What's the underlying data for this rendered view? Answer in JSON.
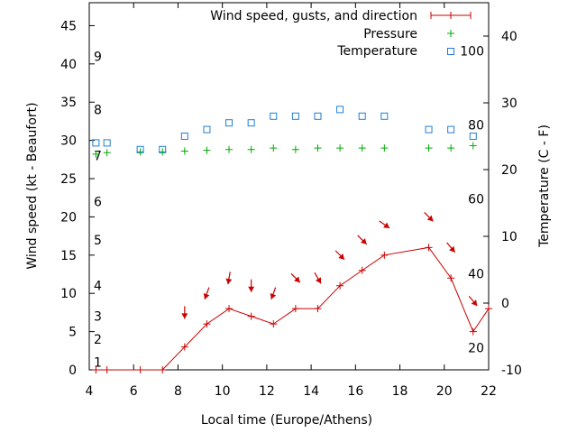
{
  "chart_data": {
    "type": "line",
    "xlabel": "Local time (Europe/Athens)",
    "ylabel_left": "Wind speed (kt - Beaufort)",
    "ylabel_right": "Temperature (C - F)",
    "xlim": [
      4,
      22
    ],
    "xticks": [
      4,
      6,
      8,
      10,
      12,
      14,
      16,
      18,
      20,
      22
    ],
    "ylim_left": [
      0,
      48
    ],
    "yticks_left": [
      0,
      5,
      10,
      15,
      20,
      25,
      30,
      35,
      40,
      45
    ],
    "ylim_right": [
      -10,
      45
    ],
    "yticks_right": [
      -10,
      0,
      10,
      20,
      30,
      40
    ],
    "beaufort_labels": [
      {
        "label": "1",
        "at": 1
      },
      {
        "label": "2",
        "at": 4
      },
      {
        "label": "3",
        "at": 7
      },
      {
        "label": "4",
        "at": 11
      },
      {
        "label": "5",
        "at": 17
      },
      {
        "label": "6",
        "at": 22
      },
      {
        "label": "7",
        "at": 28
      },
      {
        "label": "8",
        "at": 34
      },
      {
        "label": "9",
        "at": 41
      }
    ],
    "fahrenheit_labels": [
      {
        "label": "20",
        "at": -6.7
      },
      {
        "label": "40",
        "at": 4.4
      },
      {
        "label": "60",
        "at": 15.6
      },
      {
        "label": "80",
        "at": 26.7
      },
      {
        "label": "100",
        "at": 37.8
      }
    ],
    "legend": {
      "position": "top-right",
      "entries": [
        "Wind speed, gusts, and direction",
        "Pressure",
        "Temperature"
      ]
    },
    "colors": {
      "wind": "#cc0000",
      "pressure": "#00aa00",
      "temperature": "#1e7fd6"
    },
    "series": [
      {
        "name": "Wind speed, gusts, and direction",
        "axis": "left",
        "x": [
          4.3,
          4.8,
          6.3,
          7.3,
          8.3,
          9.3,
          10.3,
          11.3,
          12.3,
          13.3,
          14.3,
          15.3,
          16.3,
          17.3,
          19.3,
          20.3,
          21.3,
          22
        ],
        "y": [
          0,
          0,
          0,
          0,
          3,
          6,
          8,
          7,
          6,
          8,
          8,
          11,
          13,
          15,
          16,
          12,
          5,
          8
        ]
      },
      {
        "name": "Pressure",
        "axis": "left",
        "x": [
          4.3,
          4.8,
          6.3,
          7.3,
          8.3,
          9.3,
          10.3,
          11.3,
          12.3,
          13.3,
          14.3,
          15.3,
          16.3,
          17.3,
          19.3,
          20.3,
          21.3
        ],
        "y": [
          28.2,
          28.4,
          28.5,
          28.5,
          28.6,
          28.7,
          28.8,
          28.8,
          29.0,
          28.8,
          29.0,
          29.0,
          29.0,
          29.0,
          29.0,
          29.0,
          29.3
        ]
      },
      {
        "name": "Temperature",
        "axis": "right",
        "x": [
          4.3,
          4.8,
          6.3,
          7.3,
          8.3,
          9.3,
          10.3,
          11.3,
          12.3,
          13.3,
          14.3,
          15.3,
          16.3,
          17.3,
          19.3,
          20.3,
          21.3
        ],
        "y": [
          24,
          24,
          23,
          23,
          25,
          26,
          27,
          27,
          28,
          28,
          28,
          29,
          28,
          28,
          26,
          26,
          25
        ]
      }
    ],
    "wind_direction_arrows": [
      {
        "x": 8.3,
        "y": 7.5,
        "angle": 90
      },
      {
        "x": 9.3,
        "y": 10,
        "angle": 110
      },
      {
        "x": 10.3,
        "y": 12,
        "angle": 100
      },
      {
        "x": 11.3,
        "y": 11,
        "angle": 90
      },
      {
        "x": 12.3,
        "y": 10,
        "angle": 110
      },
      {
        "x": 13.3,
        "y": 12,
        "angle": 45
      },
      {
        "x": 14.3,
        "y": 12,
        "angle": 60
      },
      {
        "x": 15.3,
        "y": 15,
        "angle": 45
      },
      {
        "x": 16.3,
        "y": 17,
        "angle": 45
      },
      {
        "x": 17.3,
        "y": 19,
        "angle": 35
      },
      {
        "x": 19.3,
        "y": 20,
        "angle": 45
      },
      {
        "x": 20.3,
        "y": 16,
        "angle": 50
      },
      {
        "x": 21.3,
        "y": 9,
        "angle": 50
      }
    ]
  }
}
